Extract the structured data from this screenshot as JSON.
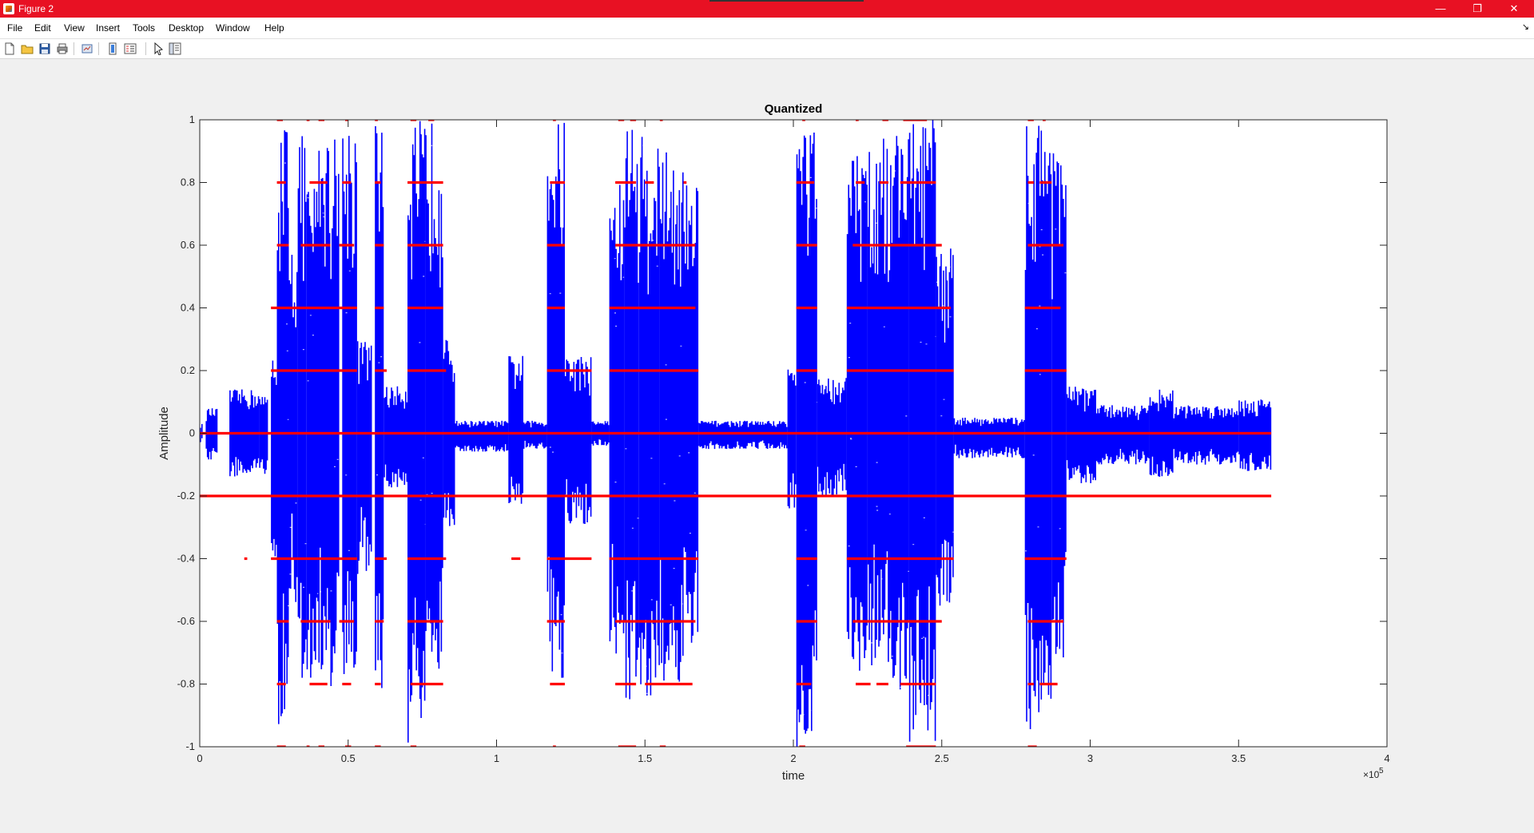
{
  "window": {
    "title": "Figure 2",
    "controls": {
      "minimize": "—",
      "restore": "❐",
      "close": "✕"
    }
  },
  "menu": {
    "items": [
      "File",
      "Edit",
      "View",
      "Insert",
      "Tools",
      "Desktop",
      "Window",
      "Help"
    ],
    "dock_arrow": "↘"
  },
  "toolbar": {
    "icons": [
      "new-figure-icon",
      "open-file-icon",
      "save-icon",
      "print-icon",
      "link-plot-icon",
      "colorbar-icon",
      "legend-icon",
      "pointer-icon",
      "property-inspector-icon"
    ]
  },
  "colors": {
    "titlebar": "#e81123",
    "signal": "#0000ff",
    "quantized": "#ff0000"
  },
  "chart_data": {
    "type": "scatter",
    "title": "Quantized",
    "xlabel": "time",
    "ylabel": "Amplitude",
    "x_exponent_label": "×10",
    "x_exponent_power": "5",
    "xlim": [
      0,
      4
    ],
    "ylim": [
      -1,
      1
    ],
    "x_ticks": [
      "0",
      "0.5",
      "1",
      "1.5",
      "2",
      "2.5",
      "3",
      "3.5",
      "4"
    ],
    "y_ticks": [
      "-1",
      "-0.8",
      "-0.6",
      "-0.4",
      "-0.2",
      "0",
      "0.2",
      "0.4",
      "0.6",
      "0.8",
      "1"
    ],
    "x_tick_values": [
      0,
      0.5,
      1,
      1.5,
      2,
      2.5,
      3,
      3.5,
      4
    ],
    "y_tick_values": [
      -1,
      -0.8,
      -0.6,
      -0.4,
      -0.2,
      0,
      0.2,
      0.4,
      0.6,
      0.8,
      1
    ],
    "grid": false,
    "signal_end": 3.61,
    "series": [
      {
        "color": "#0000ff",
        "envelope_segments": [
          [
            0.0,
            0.03,
            -0.03,
            0.01
          ],
          [
            0.02,
            0.08,
            -0.09,
            0.06
          ],
          [
            0.1,
            0.14,
            -0.14,
            0.2
          ],
          [
            0.2,
            0.12,
            -0.13,
            0.23
          ],
          [
            0.24,
            0.25,
            -0.45,
            0.3
          ],
          [
            0.26,
            1.0,
            -1.0,
            0.3
          ],
          [
            0.3,
            0.6,
            -0.55,
            0.33
          ],
          [
            0.33,
            0.95,
            -0.8,
            0.36
          ],
          [
            0.36,
            0.8,
            -0.81,
            0.4
          ],
          [
            0.4,
            1.0,
            -0.78,
            0.44
          ],
          [
            0.44,
            0.95,
            -0.82,
            0.47
          ],
          [
            0.48,
            1.0,
            -0.82,
            0.53
          ],
          [
            0.53,
            0.3,
            -0.45,
            0.58
          ],
          [
            0.59,
            1.0,
            -0.82,
            0.62
          ],
          [
            0.62,
            0.15,
            -0.18,
            0.7
          ],
          [
            0.7,
            1.0,
            -1.0,
            0.76
          ],
          [
            0.76,
            1.0,
            -0.8,
            0.82
          ],
          [
            0.82,
            0.3,
            -0.3,
            0.86
          ],
          [
            0.86,
            0.04,
            -0.06,
            1.04
          ],
          [
            1.04,
            0.25,
            -0.23,
            1.09
          ],
          [
            1.09,
            0.04,
            -0.05,
            1.17
          ],
          [
            1.17,
            1.0,
            -0.82,
            1.23
          ],
          [
            1.23,
            0.25,
            -0.3,
            1.32
          ],
          [
            1.32,
            0.04,
            -0.04,
            1.38
          ],
          [
            1.38,
            0.8,
            -0.72,
            1.43
          ],
          [
            1.43,
            1.0,
            -0.85,
            1.48
          ],
          [
            1.48,
            0.95,
            -0.85,
            1.55
          ],
          [
            1.55,
            0.9,
            -0.8,
            1.63
          ],
          [
            1.63,
            0.8,
            -0.7,
            1.68
          ],
          [
            1.68,
            0.04,
            -0.05,
            1.98
          ],
          [
            1.98,
            0.22,
            -0.25,
            2.01
          ],
          [
            2.01,
            1.0,
            -1.0,
            2.08
          ],
          [
            2.08,
            0.18,
            -0.2,
            2.18
          ],
          [
            2.18,
            0.9,
            -0.8,
            2.25
          ],
          [
            2.25,
            0.95,
            -0.75,
            2.33
          ],
          [
            2.33,
            1.0,
            -0.85,
            2.39
          ],
          [
            2.39,
            1.0,
            -1.0,
            2.48
          ],
          [
            2.48,
            0.6,
            -0.55,
            2.54
          ],
          [
            2.54,
            0.05,
            -0.08,
            2.78
          ],
          [
            2.78,
            1.0,
            -1.0,
            2.87
          ],
          [
            2.87,
            0.9,
            -0.75,
            2.92
          ],
          [
            2.92,
            0.15,
            -0.16,
            3.02
          ],
          [
            3.02,
            0.09,
            -0.1,
            3.2
          ],
          [
            3.2,
            0.14,
            -0.14,
            3.28
          ],
          [
            3.28,
            0.09,
            -0.1,
            3.5
          ],
          [
            3.5,
            0.11,
            -0.12,
            3.61
          ]
        ]
      },
      {
        "color": "#ff0000",
        "levels": [
          {
            "y": 0.0,
            "segments": [
              [
                0.0,
                3.61
              ]
            ]
          },
          {
            "y": -0.2,
            "segments": [
              [
                0.0,
                3.61
              ]
            ]
          },
          {
            "y": 0.2,
            "segments": [
              [
                0.24,
                0.53
              ],
              [
                0.59,
                0.63
              ],
              [
                0.7,
                0.83
              ],
              [
                1.17,
                1.32
              ],
              [
                1.38,
                1.68
              ],
              [
                2.01,
                2.08
              ],
              [
                2.18,
                2.54
              ],
              [
                2.78,
                2.92
              ]
            ]
          },
          {
            "y": -0.4,
            "segments": [
              [
                0.15,
                0.16
              ],
              [
                0.24,
                0.53
              ],
              [
                0.59,
                0.63
              ],
              [
                0.7,
                0.83
              ],
              [
                1.05,
                1.08
              ],
              [
                1.17,
                1.32
              ],
              [
                1.38,
                1.68
              ],
              [
                2.01,
                2.08
              ],
              [
                2.18,
                2.54
              ],
              [
                2.78,
                2.92
              ]
            ]
          },
          {
            "y": 0.4,
            "segments": [
              [
                0.24,
                0.53
              ],
              [
                0.59,
                0.62
              ],
              [
                0.7,
                0.82
              ],
              [
                1.17,
                1.23
              ],
              [
                1.38,
                1.67
              ],
              [
                2.01,
                2.08
              ],
              [
                2.18,
                2.53
              ],
              [
                2.78,
                2.9
              ]
            ]
          },
          {
            "y": -0.6,
            "segments": [
              [
                0.26,
                0.3
              ],
              [
                0.34,
                0.44
              ],
              [
                0.47,
                0.52
              ],
              [
                0.59,
                0.62
              ],
              [
                0.7,
                0.82
              ],
              [
                1.17,
                1.23
              ],
              [
                1.4,
                1.67
              ],
              [
                2.01,
                2.08
              ],
              [
                2.2,
                2.5
              ],
              [
                2.79,
                2.91
              ]
            ]
          },
          {
            "y": 0.6,
            "segments": [
              [
                0.26,
                0.3
              ],
              [
                0.34,
                0.44
              ],
              [
                0.47,
                0.52
              ],
              [
                0.59,
                0.62
              ],
              [
                0.7,
                0.82
              ],
              [
                1.17,
                1.23
              ],
              [
                1.4,
                1.67
              ],
              [
                2.01,
                2.08
              ],
              [
                2.2,
                2.5
              ],
              [
                2.79,
                2.91
              ]
            ]
          },
          {
            "y": 0.8,
            "segments": [
              [
                0.26,
                0.29
              ],
              [
                0.37,
                0.43
              ],
              [
                0.48,
                0.51
              ],
              [
                0.59,
                0.61
              ],
              [
                0.7,
                0.82
              ],
              [
                1.18,
                1.23
              ],
              [
                1.4,
                1.47
              ],
              [
                1.5,
                1.53
              ],
              [
                1.63,
                1.64
              ],
              [
                2.01,
                2.07
              ],
              [
                2.21,
                2.24
              ],
              [
                2.29,
                2.32
              ],
              [
                2.36,
                2.48
              ],
              [
                2.79,
                2.81
              ],
              [
                2.83,
                2.87
              ]
            ]
          },
          {
            "y": -0.8,
            "segments": [
              [
                0.26,
                0.29
              ],
              [
                0.37,
                0.43
              ],
              [
                0.48,
                0.51
              ],
              [
                0.59,
                0.61
              ],
              [
                0.71,
                0.82
              ],
              [
                1.18,
                1.23
              ],
              [
                1.4,
                1.47
              ],
              [
                1.5,
                1.66
              ],
              [
                2.01,
                2.06
              ],
              [
                2.21,
                2.26
              ],
              [
                2.28,
                2.32
              ],
              [
                2.36,
                2.48
              ],
              [
                2.79,
                2.81
              ],
              [
                2.83,
                2.89
              ]
            ]
          },
          {
            "y": 1.0,
            "segments": [
              [
                0.26,
                0.28
              ],
              [
                0.36,
                0.37
              ],
              [
                0.4,
                0.42
              ],
              [
                0.49,
                0.5
              ],
              [
                0.59,
                0.6
              ],
              [
                0.71,
                0.73
              ],
              [
                0.77,
                0.79
              ],
              [
                1.19,
                1.2
              ],
              [
                1.41,
                1.43
              ],
              [
                1.45,
                1.47
              ],
              [
                1.55,
                1.56
              ],
              [
                2.03,
                2.04
              ],
              [
                2.21,
                2.22
              ],
              [
                2.3,
                2.32
              ],
              [
                2.37,
                2.45
              ],
              [
                2.79,
                2.81
              ],
              [
                2.84,
                2.85
              ]
            ]
          },
          {
            "y": -1.0,
            "segments": [
              [
                0.26,
                0.29
              ],
              [
                0.36,
                0.37
              ],
              [
                0.4,
                0.42
              ],
              [
                0.49,
                0.51
              ],
              [
                0.59,
                0.61
              ],
              [
                0.71,
                0.73
              ],
              [
                1.19,
                1.2
              ],
              [
                1.41,
                1.47
              ],
              [
                1.55,
                1.57
              ],
              [
                2.02,
                2.04
              ],
              [
                2.38,
                2.48
              ],
              [
                2.79,
                2.82
              ]
            ]
          }
        ]
      }
    ]
  }
}
